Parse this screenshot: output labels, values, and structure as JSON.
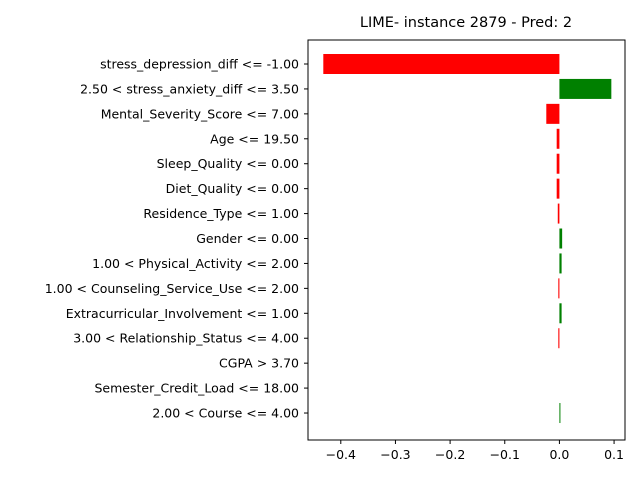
{
  "chart_data": {
    "type": "bar",
    "orientation": "horizontal",
    "title": "LIME- instance 2879 - Pred: 2",
    "xlabel": "",
    "ylabel": "",
    "xlim": [
      -0.46,
      0.12
    ],
    "xticks": [
      -0.4,
      -0.3,
      -0.2,
      -0.1,
      0.0,
      0.1
    ],
    "xtick_labels": [
      "−0.4",
      "−0.3",
      "−0.2",
      "−0.1",
      "0.0",
      "0.1"
    ],
    "grid": false,
    "legend": "none",
    "colors": {
      "positive": "#008000",
      "negative": "#ff0000"
    },
    "categories": [
      "stress_depression_diff <= -1.00",
      "2.50 < stress_anxiety_diff <= 3.50",
      "Mental_Severity_Score <= 7.00",
      "Age <= 19.50",
      "Sleep_Quality <= 0.00",
      "Diet_Quality <= 0.00",
      "Residence_Type <= 1.00",
      "Gender <= 0.00",
      "1.00 < Physical_Activity <= 2.00",
      "1.00 < Counseling_Service_Use <= 2.00",
      "Extracurricular_Involvement <= 1.00",
      "3.00 < Relationship_Status <= 4.00",
      "CGPA > 3.70",
      "Semester_Credit_Load <= 18.00",
      "2.00 < Course <= 4.00"
    ],
    "values": [
      -0.432,
      0.095,
      -0.024,
      -0.005,
      -0.005,
      -0.005,
      -0.003,
      0.005,
      0.004,
      -0.002,
      0.004,
      -0.002,
      0.0,
      0.0,
      0.001
    ]
  }
}
